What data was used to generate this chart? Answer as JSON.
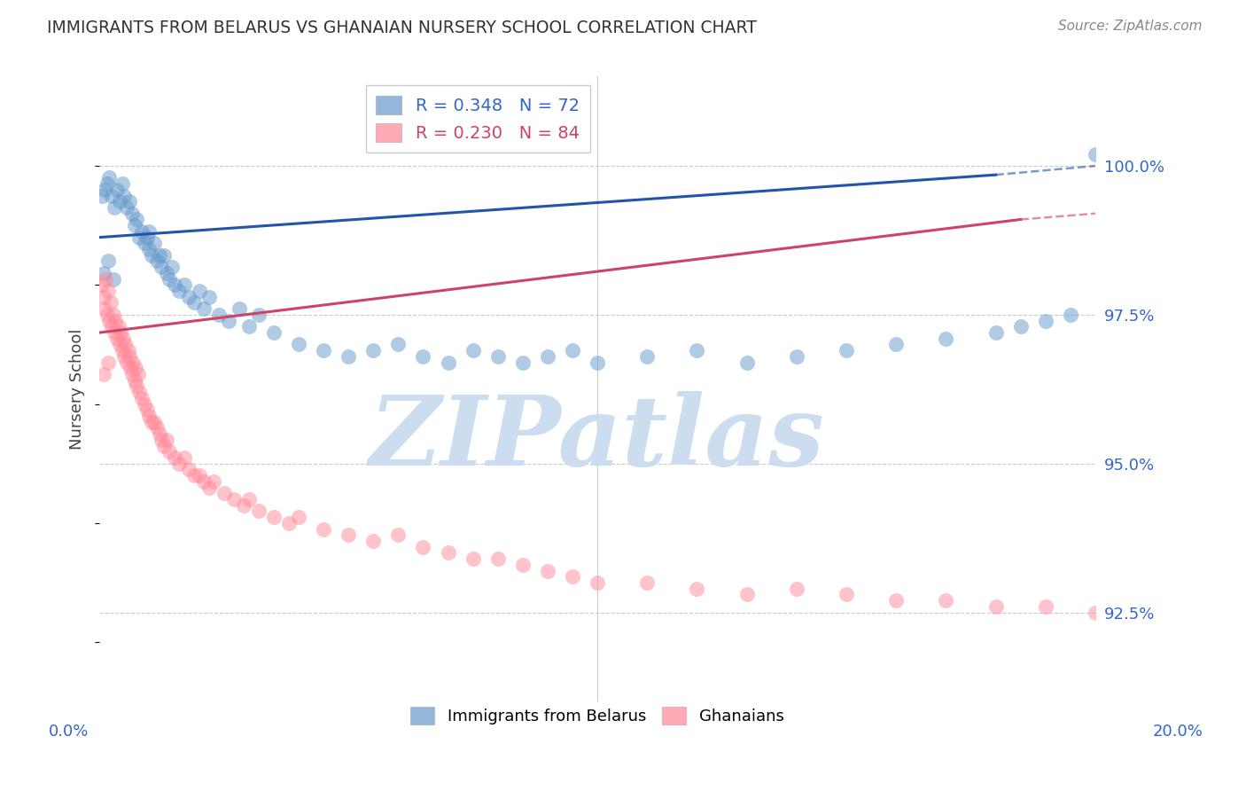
{
  "title": "IMMIGRANTS FROM BELARUS VS GHANAIAN NURSERY SCHOOL CORRELATION CHART",
  "source": "Source: ZipAtlas.com",
  "ylabel": "Nursery School",
  "yticks": [
    92.5,
    95.0,
    97.5,
    100.0
  ],
  "ytick_labels": [
    "92.5%",
    "95.0%",
    "97.5%",
    "100.0%"
  ],
  "xlim": [
    0.0,
    20.0
  ],
  "ylim": [
    91.0,
    101.5
  ],
  "legend_blue_r": "R = 0.348",
  "legend_blue_n": "N = 72",
  "legend_pink_r": "R = 0.230",
  "legend_pink_n": "N = 84",
  "legend_label_blue": "Immigrants from Belarus",
  "legend_label_pink": "Ghanaians",
  "blue_color": "#6699CC",
  "pink_color": "#FF8899",
  "blue_line_color": "#2255AA",
  "pink_line_color": "#CC4466",
  "axis_label_color": "#3366CC",
  "title_color": "#333333",
  "watermark_color": "#CCDDF0",
  "watermark_text": "ZIPatlas",
  "grid_color": "#CCCCCC",
  "blue_scatter_x": [
    0.05,
    0.1,
    0.15,
    0.2,
    0.25,
    0.3,
    0.35,
    0.4,
    0.45,
    0.5,
    0.55,
    0.6,
    0.65,
    0.7,
    0.75,
    0.8,
    0.85,
    0.9,
    0.95,
    1.0,
    1.0,
    1.05,
    1.1,
    1.15,
    1.2,
    1.25,
    1.3,
    1.35,
    1.4,
    1.45,
    1.5,
    1.6,
    1.7,
    1.8,
    1.9,
    2.0,
    2.1,
    2.2,
    2.4,
    2.6,
    2.8,
    3.0,
    3.2,
    3.5,
    4.0,
    4.5,
    5.0,
    5.5,
    6.0,
    6.5,
    7.0,
    7.5,
    8.0,
    8.5,
    9.0,
    9.5,
    10.0,
    11.0,
    12.0,
    13.0,
    14.0,
    15.0,
    16.0,
    17.0,
    18.0,
    18.5,
    19.0,
    19.5,
    20.0,
    0.08,
    0.18,
    0.28
  ],
  "blue_scatter_y": [
    99.5,
    99.6,
    99.7,
    99.8,
    99.5,
    99.3,
    99.6,
    99.4,
    99.7,
    99.5,
    99.3,
    99.4,
    99.2,
    99.0,
    99.1,
    98.8,
    98.9,
    98.7,
    98.8,
    98.6,
    98.9,
    98.5,
    98.7,
    98.4,
    98.5,
    98.3,
    98.5,
    98.2,
    98.1,
    98.3,
    98.0,
    97.9,
    98.0,
    97.8,
    97.7,
    97.9,
    97.6,
    97.8,
    97.5,
    97.4,
    97.6,
    97.3,
    97.5,
    97.2,
    97.0,
    96.9,
    96.8,
    96.9,
    97.0,
    96.8,
    96.7,
    96.9,
    96.8,
    96.7,
    96.8,
    96.9,
    96.7,
    96.8,
    96.9,
    96.7,
    96.8,
    96.9,
    97.0,
    97.1,
    97.2,
    97.3,
    97.4,
    97.5,
    100.2,
    98.2,
    98.4,
    98.1
  ],
  "pink_scatter_x": [
    0.05,
    0.08,
    0.1,
    0.12,
    0.15,
    0.18,
    0.2,
    0.22,
    0.25,
    0.28,
    0.3,
    0.32,
    0.35,
    0.38,
    0.4,
    0.42,
    0.45,
    0.48,
    0.5,
    0.52,
    0.55,
    0.58,
    0.6,
    0.62,
    0.65,
    0.68,
    0.7,
    0.72,
    0.75,
    0.78,
    0.8,
    0.85,
    0.9,
    0.95,
    1.0,
    1.05,
    1.1,
    1.15,
    1.2,
    1.25,
    1.3,
    1.35,
    1.4,
    1.5,
    1.6,
    1.7,
    1.8,
    1.9,
    2.0,
    2.1,
    2.2,
    2.3,
    2.5,
    2.7,
    2.9,
    3.0,
    3.2,
    3.5,
    3.8,
    4.0,
    4.5,
    5.0,
    5.5,
    6.0,
    6.5,
    7.0,
    7.5,
    8.0,
    8.5,
    9.0,
    9.5,
    10.0,
    11.0,
    12.0,
    13.0,
    14.0,
    15.0,
    16.0,
    17.0,
    18.0,
    19.0,
    20.0,
    0.08,
    0.18
  ],
  "pink_scatter_y": [
    98.0,
    97.8,
    97.6,
    98.1,
    97.5,
    97.9,
    97.4,
    97.7,
    97.3,
    97.5,
    97.2,
    97.4,
    97.1,
    97.3,
    97.0,
    97.2,
    96.9,
    97.1,
    96.8,
    97.0,
    96.7,
    96.9,
    96.8,
    96.6,
    96.5,
    96.7,
    96.4,
    96.6,
    96.3,
    96.5,
    96.2,
    96.1,
    96.0,
    95.9,
    95.8,
    95.7,
    95.7,
    95.6,
    95.5,
    95.4,
    95.3,
    95.4,
    95.2,
    95.1,
    95.0,
    95.1,
    94.9,
    94.8,
    94.8,
    94.7,
    94.6,
    94.7,
    94.5,
    94.4,
    94.3,
    94.4,
    94.2,
    94.1,
    94.0,
    94.1,
    93.9,
    93.8,
    93.7,
    93.8,
    93.6,
    93.5,
    93.4,
    93.4,
    93.3,
    93.2,
    93.1,
    93.0,
    93.0,
    92.9,
    92.8,
    92.9,
    92.8,
    92.7,
    92.7,
    92.6,
    92.6,
    92.5,
    96.5,
    96.7
  ],
  "blue_trendline_x0": 0.0,
  "blue_trendline_y0": 98.8,
  "blue_trendline_x1": 18.0,
  "blue_trendline_y1": 99.85,
  "blue_trendline_dash_x0": 18.0,
  "blue_trendline_dash_y0": 99.85,
  "blue_trendline_dash_x1": 20.0,
  "blue_trendline_dash_y1": 100.0,
  "pink_trendline_x0": 0.0,
  "pink_trendline_y0": 97.2,
  "pink_trendline_x1": 18.5,
  "pink_trendline_y1": 99.1,
  "pink_trendline_dash_x0": 18.5,
  "pink_trendline_dash_y0": 99.1,
  "pink_trendline_dash_x1": 20.0,
  "pink_trendline_dash_y1": 99.2
}
